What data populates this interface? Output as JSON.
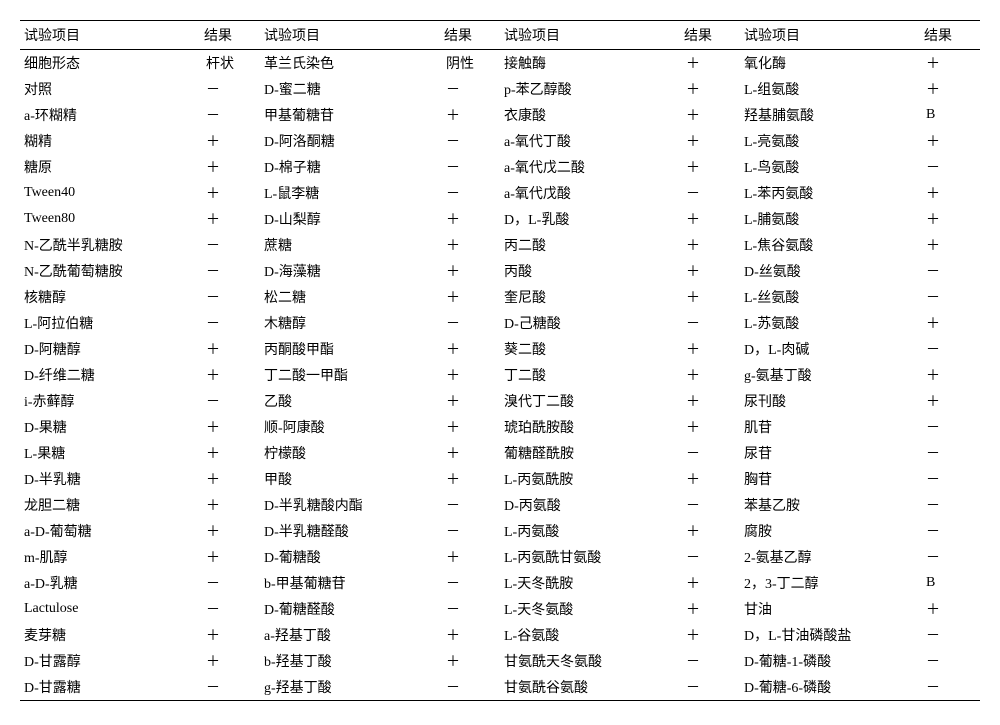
{
  "header": {
    "item": "试验项目",
    "result": "结果"
  },
  "rows": [
    {
      "c1": "细胞形态",
      "r1": "杆状",
      "c2": "革兰氏染色",
      "r2": "阴性",
      "c3": "接触酶",
      "r3": "＋",
      "c4": "氧化酶",
      "r4": "＋"
    },
    {
      "c1": "对照",
      "r1": "－",
      "c2": "D-蜜二糖",
      "r2": "－",
      "c3": "p-苯乙醇酸",
      "r3": "＋",
      "c4": "L-组氨酸",
      "r4": "＋"
    },
    {
      "c1": "a-环糊精",
      "r1": "－",
      "c2": "甲基葡糖苷",
      "r2": "＋",
      "c3": "衣康酸",
      "r3": "＋",
      "c4": "羟基脯氨酸",
      "r4": "B"
    },
    {
      "c1": "糊精",
      "r1": "＋",
      "c2": "D-阿洛酮糖",
      "r2": "－",
      "c3": "a-氧代丁酸",
      "r3": "＋",
      "c4": "L-亮氨酸",
      "r4": "＋"
    },
    {
      "c1": "糖原",
      "r1": "＋",
      "c2": "D-棉子糖",
      "r2": "－",
      "c3": "a-氧代戊二酸",
      "r3": "＋",
      "c4": "L-鸟氨酸",
      "r4": "－"
    },
    {
      "c1": "Tween40",
      "r1": "＋",
      "c2": "L-鼠李糖",
      "r2": "－",
      "c3": "a-氧代戊酸",
      "r3": "－",
      "c4": "L-苯丙氨酸",
      "r4": "＋"
    },
    {
      "c1": "Tween80",
      "r1": "＋",
      "c2": "D-山梨醇",
      "r2": "＋",
      "c3": "D，L-乳酸",
      "r3": "＋",
      "c4": "L-脯氨酸",
      "r4": "＋"
    },
    {
      "c1": "N-乙酰半乳糖胺",
      "r1": "－",
      "c2": "蔗糖",
      "r2": "＋",
      "c3": "丙二酸",
      "r3": "＋",
      "c4": "L-焦谷氨酸",
      "r4": "＋"
    },
    {
      "c1": "N-乙酰葡萄糖胺",
      "r1": "－",
      "c2": "D-海藻糖",
      "r2": "＋",
      "c3": "丙酸",
      "r3": "＋",
      "c4": "D-丝氨酸",
      "r4": "－"
    },
    {
      "c1": "核糖醇",
      "r1": "－",
      "c2": "松二糖",
      "r2": "＋",
      "c3": "奎尼酸",
      "r3": "＋",
      "c4": "L-丝氨酸",
      "r4": "－"
    },
    {
      "c1": "L-阿拉伯糖",
      "r1": "－",
      "c2": "木糖醇",
      "r2": "－",
      "c3": "D-己糖酸",
      "r3": "－",
      "c4": "L-苏氨酸",
      "r4": "＋"
    },
    {
      "c1": "D-阿糖醇",
      "r1": "＋",
      "c2": "丙酮酸甲酯",
      "r2": "＋",
      "c3": "葵二酸",
      "r3": "＋",
      "c4": "D，L-肉碱",
      "r4": "－"
    },
    {
      "c1": "D-纤维二糖",
      "r1": "＋",
      "c2": "丁二酸一甲酯",
      "r2": "＋",
      "c3": "丁二酸",
      "r3": "＋",
      "c4": "g-氨基丁酸",
      "r4": "＋"
    },
    {
      "c1": "i-赤藓醇",
      "r1": "－",
      "c2": "乙酸",
      "r2": "＋",
      "c3": "溴代丁二酸",
      "r3": "＋",
      "c4": "尿刊酸",
      "r4": "＋"
    },
    {
      "c1": "D-果糖",
      "r1": "＋",
      "c2": "顺-阿康酸",
      "r2": "＋",
      "c3": "琥珀酰胺酸",
      "r3": "＋",
      "c4": "肌苷",
      "r4": "－"
    },
    {
      "c1": "L-果糖",
      "r1": "＋",
      "c2": "柠檬酸",
      "r2": "＋",
      "c3": "葡糖醛酰胺",
      "r3": "－",
      "c4": "尿苷",
      "r4": "－"
    },
    {
      "c1": "D-半乳糖",
      "r1": "＋",
      "c2": "甲酸",
      "r2": "＋",
      "c3": "L-丙氨酰胺",
      "r3": "＋",
      "c4": "胸苷",
      "r4": "－"
    },
    {
      "c1": "龙胆二糖",
      "r1": "＋",
      "c2": "D-半乳糖酸内酯",
      "r2": "－",
      "c3": "D-丙氨酸",
      "r3": "－",
      "c4": "苯基乙胺",
      "r4": "－"
    },
    {
      "c1": "a-D-葡萄糖",
      "r1": "＋",
      "c2": "D-半乳糖醛酸",
      "r2": "－",
      "c3": "L-丙氨酸",
      "r3": "＋",
      "c4": "腐胺",
      "r4": "－"
    },
    {
      "c1": "m-肌醇",
      "r1": "＋",
      "c2": "D-葡糖酸",
      "r2": "＋",
      "c3": "L-丙氨酰甘氨酸",
      "r3": "－",
      "c4": "2-氨基乙醇",
      "r4": "－"
    },
    {
      "c1": "a-D-乳糖",
      "r1": "－",
      "c2": "b-甲基葡糖苷",
      "r2": "－",
      "c3": "L-天冬酰胺",
      "r3": "＋",
      "c4": "2，3-丁二醇",
      "r4": "B"
    },
    {
      "c1": "Lactulose",
      "r1": "－",
      "c2": "D-葡糖醛酸",
      "r2": "－",
      "c3": "L-天冬氨酸",
      "r3": "＋",
      "c4": "甘油",
      "r4": "＋"
    },
    {
      "c1": "麦芽糖",
      "r1": "＋",
      "c2": "a-羟基丁酸",
      "r2": "＋",
      "c3": "L-谷氨酸",
      "r3": "＋",
      "c4": "D，L-甘油磷酸盐",
      "r4": "－"
    },
    {
      "c1": "D-甘露醇",
      "r1": "＋",
      "c2": "b-羟基丁酸",
      "r2": "＋",
      "c3": "甘氨酰天冬氨酸",
      "r3": "－",
      "c4": "D-葡糖-1-磷酸",
      "r4": "－"
    },
    {
      "c1": "D-甘露糖",
      "r1": "－",
      "c2": "g-羟基丁酸",
      "r2": "－",
      "c3": "甘氨酰谷氨酸",
      "r3": "－",
      "c4": "D-葡糖-6-磷酸",
      "r4": "－"
    }
  ]
}
